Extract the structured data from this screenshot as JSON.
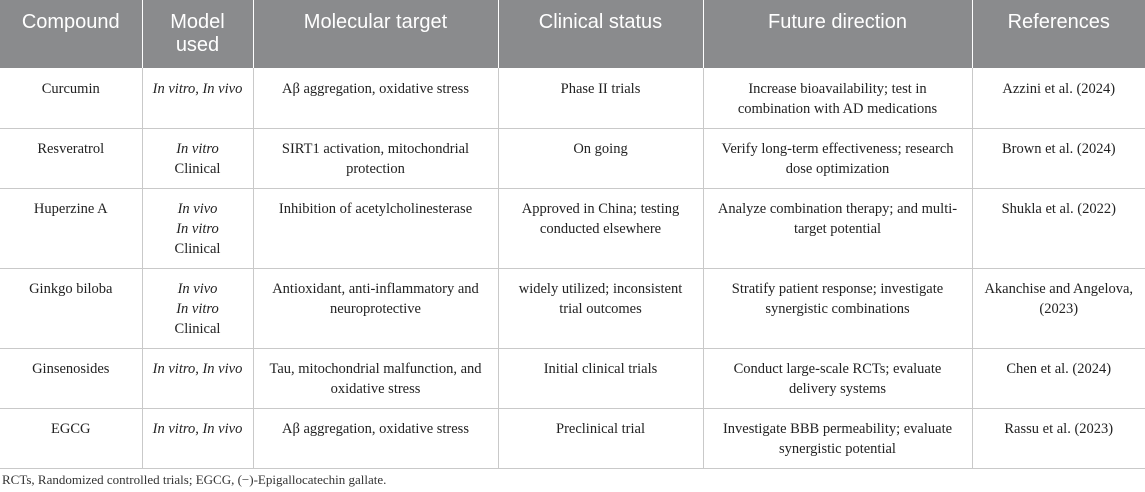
{
  "table": {
    "headers": [
      "Compound",
      "Model used",
      "Molecular target",
      "Clinical status",
      "Future direction",
      "References"
    ],
    "rows": [
      {
        "compound": "Curcumin",
        "model": {
          "a": "In vitro",
          "sep": ", ",
          "b": "In vivo"
        },
        "target": "Aβ aggregation, oxidative stress",
        "status": "Phase II trials",
        "future": "Increase bioavailability; test in combination with AD medications",
        "reference": "Azzini et al. (2024)"
      },
      {
        "compound": "Resveratrol",
        "model": {
          "a": "In vitro",
          "b": "Clinical"
        },
        "target": "SIRT1 activation, mitochondrial protection",
        "status": "On going",
        "future": "Verify long-term effectiveness; research dose optimization",
        "reference": "Brown et al. (2024)"
      },
      {
        "compound": "Huperzine A",
        "model": {
          "a": "In vivo",
          "b": "In vitro",
          "c": "Clinical"
        },
        "target": "Inhibition of acetylcholinesterase",
        "status": "Approved in China; testing conducted elsewhere",
        "future": "Analyze combination therapy; and multi-target potential",
        "reference": "Shukla et al. (2022)"
      },
      {
        "compound": "Ginkgo biloba",
        "model": {
          "a": "In vivo",
          "b": "In vitro",
          "c": "Clinical"
        },
        "target": "Antioxidant, anti-inflammatory and neuroprotective",
        "status": "widely utilized; inconsistent trial outcomes",
        "future": "Stratify patient response; investigate synergistic combinations",
        "reference": "Akanchise and Angelova, (2023)"
      },
      {
        "compound": "Ginsenosides",
        "model": {
          "a": "In vitro",
          "sep": ", ",
          "b": "In vivo"
        },
        "target": "Tau, mitochondrial malfunction, and oxidative stress",
        "status": "Initial clinical trials",
        "future": "Conduct large-scale RCTs; evaluate delivery systems",
        "reference": "Chen et al. (2024)"
      },
      {
        "compound": "EGCG",
        "model": {
          "a": "In vitro",
          "sep": ", ",
          "b": "In vivo"
        },
        "target": "Aβ aggregation, oxidative stress",
        "status": "Preclinical trial",
        "future": "Investigate BBB permeability; evaluate synergistic potential",
        "reference": "Rassu et al. (2023)"
      }
    ]
  },
  "footnote": "RCTs, Randomized controlled trials; EGCG, (−)-Epigallocatechin gallate."
}
